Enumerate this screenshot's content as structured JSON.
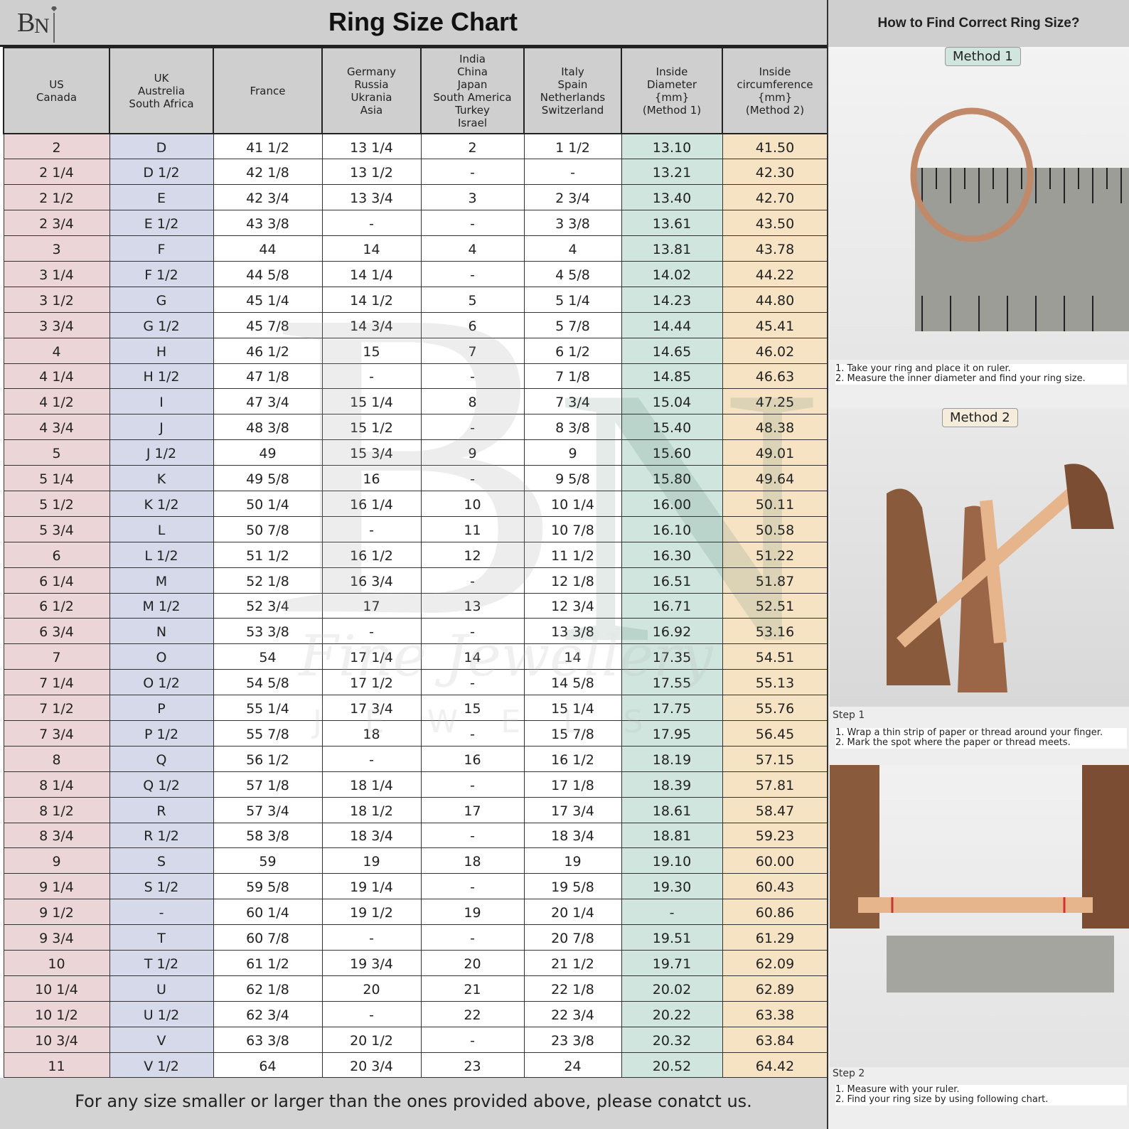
{
  "header": {
    "title": "Ring Size Chart",
    "logo_text": "BN"
  },
  "right_panel": {
    "title": "How to Find Correct Ring Size?",
    "method1": {
      "label": "Method 1",
      "caption": "1. Take your ring and place it on ruler.\n2. Measure the inner diameter and find your ring size."
    },
    "method2": {
      "label": "Method 2",
      "step1": {
        "label": "Step 1",
        "caption": "1. Wrap a thin strip of paper or thread around your finger.\n2. Mark the spot where the paper or thread meets."
      },
      "step2": {
        "label": "Step 2",
        "caption": "1. Measure with your ruler.\n2. Find your ring size by using following chart."
      }
    }
  },
  "watermark": {
    "letters": "BN",
    "script": "Fine Jewellery",
    "sub": "JEWELS"
  },
  "colors": {
    "us": "#ecd5d7",
    "uk": "#d5d9e9",
    "diameter": "#cfe5dd",
    "circumference": "#f5e3c4",
    "header": "#cfcfcf"
  },
  "table": {
    "headers": [
      "US\nCanada",
      "UK\nAustrelia\nSouth Africa",
      "France",
      "Germany\nRussia\nUkrania\nAsia",
      "India\nChina\nJapan\nSouth America\nTurkey\nIsrael",
      "Italy\nSpain\nNetherlands\nSwitzerland",
      "Inside\nDiameter\n{mm}\n(Method 1)",
      "Inside\ncircumference\n{mm}\n(Method 2)"
    ],
    "rows": [
      [
        "2",
        "D",
        "41 1/2",
        "13 1/4",
        "2",
        "1 1/2",
        "13.10",
        "41.50"
      ],
      [
        "2 1/4",
        "D 1/2",
        "42 1/8",
        "13 1/2",
        "-",
        "-",
        "13.21",
        "42.30"
      ],
      [
        "2 1/2",
        "E",
        "42 3/4",
        "13 3/4",
        "3",
        "2 3/4",
        "13.40",
        "42.70"
      ],
      [
        "2 3/4",
        "E 1/2",
        "43 3/8",
        "-",
        "-",
        "3 3/8",
        "13.61",
        "43.50"
      ],
      [
        "3",
        "F",
        "44",
        "14",
        "4",
        "4",
        "13.81",
        "43.78"
      ],
      [
        "3 1/4",
        "F 1/2",
        "44 5/8",
        "14 1/4",
        "-",
        "4 5/8",
        "14.02",
        "44.22"
      ],
      [
        "3 1/2",
        "G",
        "45 1/4",
        "14 1/2",
        "5",
        "5 1/4",
        "14.23",
        "44.80"
      ],
      [
        "3 3/4",
        "G 1/2",
        "45 7/8",
        "14 3/4",
        "6",
        "5 7/8",
        "14.44",
        "45.41"
      ],
      [
        "4",
        "H",
        "46 1/2",
        "15",
        "7",
        "6 1/2",
        "14.65",
        "46.02"
      ],
      [
        "4 1/4",
        "H 1/2",
        "47 1/8",
        "-",
        "-",
        "7 1/8",
        "14.85",
        "46.63"
      ],
      [
        "4 1/2",
        "I",
        "47 3/4",
        "15 1/4",
        "8",
        "7 3/4",
        "15.04",
        "47.25"
      ],
      [
        "4 3/4",
        "J",
        "48 3/8",
        "15 1/2",
        "-",
        "8 3/8",
        "15.40",
        "48.38"
      ],
      [
        "5",
        "J 1/2",
        "49",
        "15 3/4",
        "9",
        "9",
        "15.60",
        "49.01"
      ],
      [
        "5 1/4",
        "K",
        "49 5/8",
        "16",
        "-",
        "9 5/8",
        "15.80",
        "49.64"
      ],
      [
        "5 1/2",
        "K 1/2",
        "50 1/4",
        "16 1/4",
        "10",
        "10 1/4",
        "16.00",
        "50.11"
      ],
      [
        "5 3/4",
        "L",
        "50 7/8",
        "-",
        "11",
        "10 7/8",
        "16.10",
        "50.58"
      ],
      [
        "6",
        "L 1/2",
        "51 1/2",
        "16 1/2",
        "12",
        "11 1/2",
        "16.30",
        "51.22"
      ],
      [
        "6 1/4",
        "M",
        "52 1/8",
        "16 3/4",
        "-",
        "12 1/8",
        "16.51",
        "51.87"
      ],
      [
        "6 1/2",
        "M 1/2",
        "52 3/4",
        "17",
        "13",
        "12 3/4",
        "16.71",
        "52.51"
      ],
      [
        "6 3/4",
        "N",
        "53 3/8",
        "-",
        "-",
        "13 3/8",
        "16.92",
        "53.16"
      ],
      [
        "7",
        "O",
        "54",
        "17 1/4",
        "14",
        "14",
        "17.35",
        "54.51"
      ],
      [
        "7 1/4",
        "O 1/2",
        "54 5/8",
        "17 1/2",
        "-",
        "14 5/8",
        "17.55",
        "55.13"
      ],
      [
        "7 1/2",
        "P",
        "55 1/4",
        "17 3/4",
        "15",
        "15 1/4",
        "17.75",
        "55.76"
      ],
      [
        "7 3/4",
        "P 1/2",
        "55 7/8",
        "18",
        "-",
        "15 7/8",
        "17.95",
        "56.45"
      ],
      [
        "8",
        "Q",
        "56 1/2",
        "-",
        "16",
        "16 1/2",
        "18.19",
        "57.15"
      ],
      [
        "8 1/4",
        "Q 1/2",
        "57 1/8",
        "18 1/4",
        "-",
        "17 1/8",
        "18.39",
        "57.81"
      ],
      [
        "8 1/2",
        "R",
        "57 3/4",
        "18 1/2",
        "17",
        "17 3/4",
        "18.61",
        "58.47"
      ],
      [
        "8 3/4",
        "R 1/2",
        "58 3/8",
        "18 3/4",
        "-",
        "18 3/4",
        "18.81",
        "59.23"
      ],
      [
        "9",
        "S",
        "59",
        "19",
        "18",
        "19",
        "19.10",
        "60.00"
      ],
      [
        "9 1/4",
        "S 1/2",
        "59 5/8",
        "19 1/4",
        "-",
        "19 5/8",
        "19.30",
        "60.43"
      ],
      [
        "9 1/2",
        "-",
        "60 1/4",
        "19 1/2",
        "19",
        "20 1/4",
        "-",
        "60.86"
      ],
      [
        "9 3/4",
        "T",
        "60 7/8",
        "-",
        "-",
        "20 7/8",
        "19.51",
        "61.29"
      ],
      [
        "10",
        "T 1/2",
        "61 1/2",
        "19 3/4",
        "20",
        "21 1/2",
        "19.71",
        "62.09"
      ],
      [
        "10 1/4",
        "U",
        "62 1/8",
        "20",
        "21",
        "22 1/8",
        "20.02",
        "62.89"
      ],
      [
        "10 1/2",
        "U 1/2",
        "62 3/4",
        "-",
        "22",
        "22 3/4",
        "20.22",
        "63.38"
      ],
      [
        "10 3/4",
        "V",
        "63 3/8",
        "20 1/2",
        "-",
        "23 3/8",
        "20.32",
        "63.84"
      ],
      [
        "11",
        "V 1/2",
        "64",
        "20 3/4",
        "23",
        "24",
        "20.52",
        "64.42"
      ]
    ]
  },
  "footer": {
    "text": "For any size smaller or larger than the ones provided above, please conatct us."
  }
}
